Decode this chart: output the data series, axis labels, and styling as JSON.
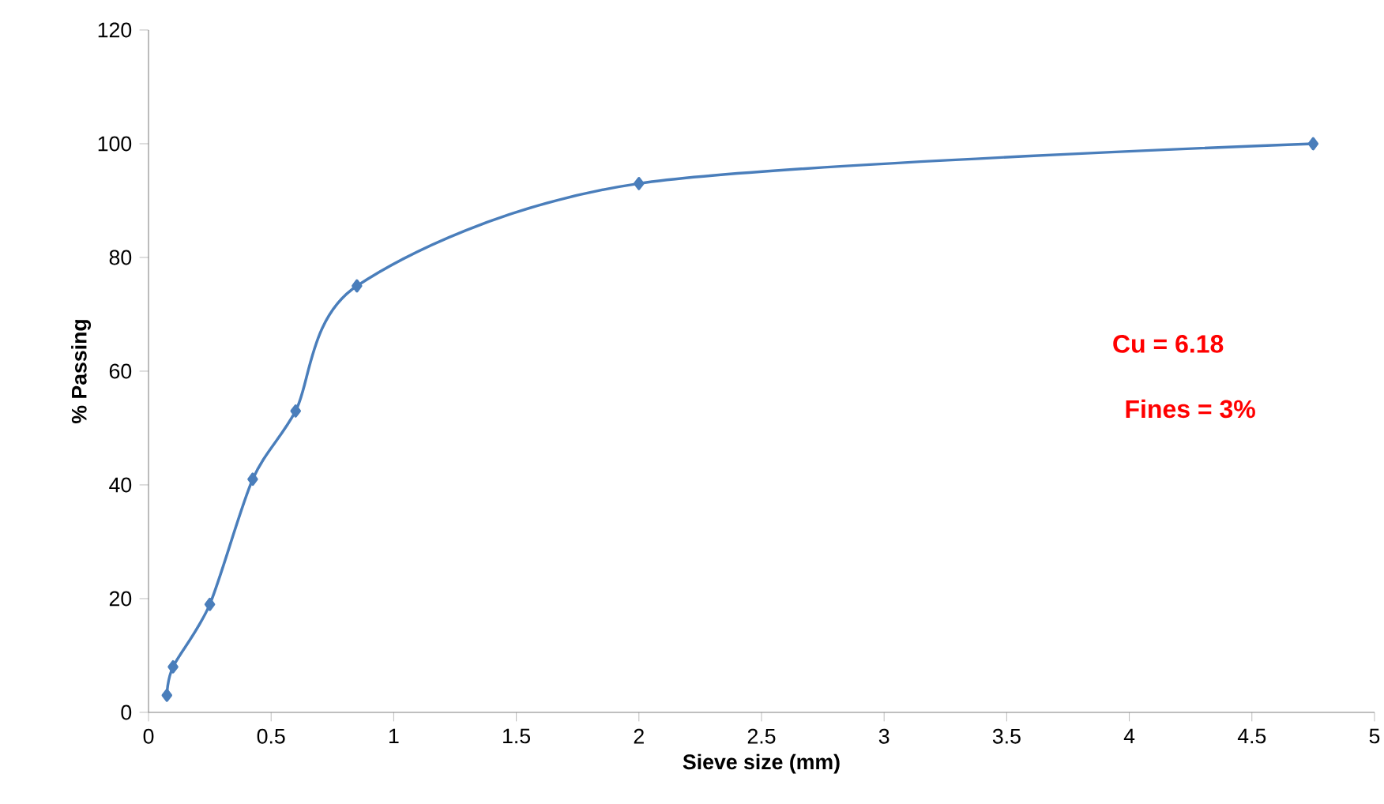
{
  "chart_data": {
    "type": "line",
    "xlabel": "Sieve size (mm)",
    "ylabel": "% Passing",
    "x": [
      0.075,
      0.1,
      0.25,
      0.425,
      0.6,
      0.85,
      2,
      4.75
    ],
    "series": [
      {
        "color": "#4a7ebb",
        "values": [
          3,
          8,
          19,
          41,
          53,
          75,
          93,
          100
        ]
      }
    ],
    "xlim": [
      0,
      5
    ],
    "xticks": [
      0,
      0.5,
      1,
      1.5,
      2,
      2.5,
      3,
      3.5,
      4,
      4.5,
      5
    ],
    "ylim": [
      0,
      120
    ],
    "yticks": [
      0,
      20,
      40,
      60,
      80,
      100,
      120
    ],
    "marker": "diamond",
    "line_style": "solid",
    "grid": false,
    "annotations": [
      "Cu = 6.18",
      "Fines = 3%"
    ]
  }
}
